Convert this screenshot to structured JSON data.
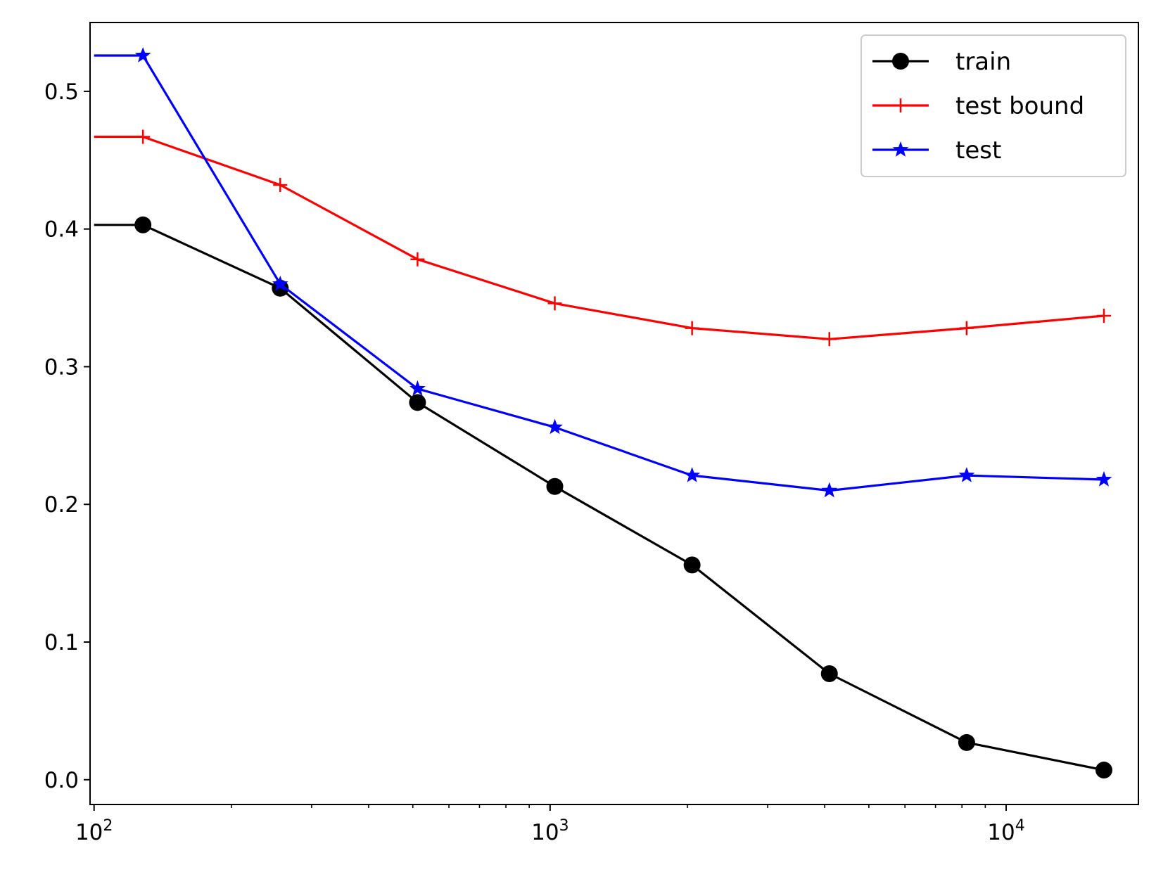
{
  "chart_data": {
    "type": "line",
    "title": "",
    "xlabel": "",
    "ylabel": "",
    "xscale": "log",
    "xlim": [
      98,
      19500
    ],
    "ylim": [
      -0.018,
      0.55
    ],
    "grid": false,
    "legend_position": "top-right",
    "x_ticks": [
      {
        "value": 100,
        "base": "10",
        "exp": "2"
      },
      {
        "value": 1000,
        "base": "10",
        "exp": "3"
      },
      {
        "value": 10000,
        "base": "10",
        "exp": "4"
      }
    ],
    "y_ticks": [
      {
        "value": 0.0,
        "label": "0.0"
      },
      {
        "value": 0.1,
        "label": "0.1"
      },
      {
        "value": 0.2,
        "label": "0.2"
      },
      {
        "value": 0.3,
        "label": "0.3"
      },
      {
        "value": 0.4,
        "label": "0.4"
      },
      {
        "value": 0.5,
        "label": "0.5"
      }
    ],
    "series": [
      {
        "name": "train",
        "color": "#000000",
        "marker": "circle",
        "x": [
          100,
          128,
          256,
          512,
          1024,
          2048,
          4096,
          8192,
          16384
        ],
        "y": [
          0.403,
          0.403,
          0.357,
          0.274,
          0.213,
          0.156,
          0.077,
          0.027,
          0.007
        ]
      },
      {
        "name": "test bound",
        "color": "#ff0000",
        "marker": "plus",
        "x": [
          100,
          128,
          256,
          512,
          1024,
          2048,
          4096,
          8192,
          16384
        ],
        "y": [
          0.467,
          0.467,
          0.432,
          0.378,
          0.346,
          0.328,
          0.32,
          0.328,
          0.337
        ]
      },
      {
        "name": "test",
        "color": "#0000ff",
        "marker": "star",
        "x": [
          100,
          128,
          256,
          512,
          1024,
          2048,
          4096,
          8192,
          16384
        ],
        "y": [
          0.526,
          0.526,
          0.36,
          0.284,
          0.256,
          0.221,
          0.21,
          0.221,
          0.218
        ]
      }
    ]
  }
}
